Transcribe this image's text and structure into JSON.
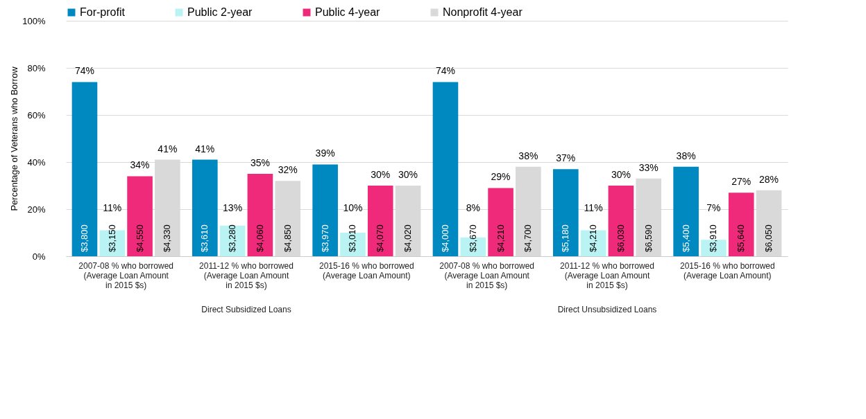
{
  "chart_data": {
    "type": "bar",
    "ylabel": "Percentage of Veterans who Borrow",
    "categories": [
      "2007-08 % who borrowed\n(Average Loan Amount\nin 2015 $s)",
      "2011-12 % who borrowed\n(Average Loan Amount\nin 2015 $s)",
      "2015-16 % who borrowed\n(Average Loan Amount)",
      "2007-08 % who borrowed\n(Average Loan Amount\nin 2015 $s)",
      "2011-12 % who borrowed\n(Average Loan Amount\nin 2015 $s)",
      "2015-16 % who borrowed\n(Average Loan Amount)"
    ],
    "series": [
      {
        "name": "For-profit",
        "color": "#0088c0",
        "values": [
          74,
          41,
          39,
          74,
          37,
          38
        ],
        "value_labels": [
          "74%",
          "41%",
          "39%",
          "74%",
          "37%",
          "38%"
        ]
      },
      {
        "name": "Public 2-year",
        "color": "#b9f3f3",
        "values": [
          11,
          13,
          10,
          8,
          11,
          7
        ],
        "value_labels": [
          "11%",
          "13%",
          "10%",
          "8%",
          "11%",
          "7%"
        ]
      },
      {
        "name": "Public 4-year",
        "color": "#ef2a7a",
        "values": [
          34,
          35,
          30,
          29,
          30,
          27
        ],
        "value_labels": [
          "34%",
          "35%",
          "30%",
          "29%",
          "30%",
          "27%"
        ]
      },
      {
        "name": "Nonprofit 4-year",
        "color": "#d9d9d9",
        "values": [
          41,
          32,
          30,
          38,
          33,
          28
        ],
        "value_labels": [
          "41%",
          "32%",
          "30%",
          "38%",
          "33%",
          "28%"
        ]
      }
    ],
    "annotations": [
      "Direct Subsidized Loans",
      "Direct Unsubsidized Loans",
      "$3,800",
      "$3,610",
      "$3,970",
      "$4,000",
      "$5,180",
      "$5,400",
      "$3,150",
      "$3,280",
      "$3,010",
      "$3,670",
      "$4,210",
      "$3,910",
      "$4,550",
      "$4,060",
      "$4,070",
      "$4,210",
      "$6,030",
      "$5,640",
      "$4,330",
      "$4,850",
      "$4,020",
      "$4,700",
      "$6,590",
      "$6,050"
    ],
    "ylim": [
      0,
      100
    ],
    "yticks": [
      {
        "value": 0,
        "label": "0%"
      },
      {
        "value": 20,
        "label": "20%"
      },
      {
        "value": 40,
        "label": "40%"
      },
      {
        "value": 60,
        "label": "60%"
      },
      {
        "value": 80,
        "label": "80%"
      },
      {
        "value": 100,
        "label": "100%"
      }
    ],
    "grid": "y",
    "legend": "top"
  }
}
